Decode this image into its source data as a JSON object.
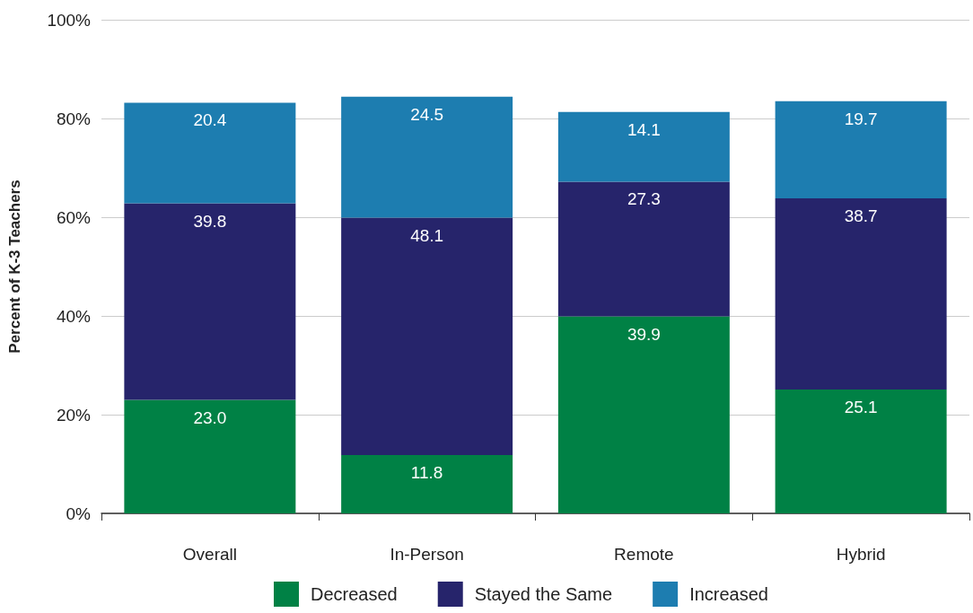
{
  "chart_data": {
    "type": "bar",
    "stacked": true,
    "ylabel": "Percent of K-3 Teachers",
    "categories": [
      "Overall",
      "In-Person",
      "Remote",
      "Hybrid"
    ],
    "series": [
      {
        "name": "Decreased",
        "color": "#008145",
        "values": [
          23.0,
          11.8,
          39.9,
          25.1
        ],
        "value_labels": [
          "23.0",
          "11.8",
          "39.9",
          "25.1"
        ]
      },
      {
        "name": "Stayed the Same",
        "color": "#26246b",
        "values": [
          39.8,
          48.1,
          27.3,
          38.7
        ],
        "value_labels": [
          "39.8",
          "48.1",
          "27.3",
          "38.7"
        ]
      },
      {
        "name": "Increased",
        "color": "#1d7db0",
        "values": [
          20.4,
          24.5,
          14.1,
          19.7
        ],
        "value_labels": [
          "20.4",
          "24.5",
          "14.1",
          "19.7"
        ]
      }
    ],
    "ylim": [
      0,
      100
    ],
    "yticks": [
      {
        "value": 0,
        "label": "0%"
      },
      {
        "value": 20,
        "label": "20%"
      },
      {
        "value": 40,
        "label": "40%"
      },
      {
        "value": 60,
        "label": "60%"
      },
      {
        "value": 80,
        "label": "80%"
      },
      {
        "value": 100,
        "label": "100%"
      }
    ],
    "grid": "y",
    "legend": "bottom"
  }
}
